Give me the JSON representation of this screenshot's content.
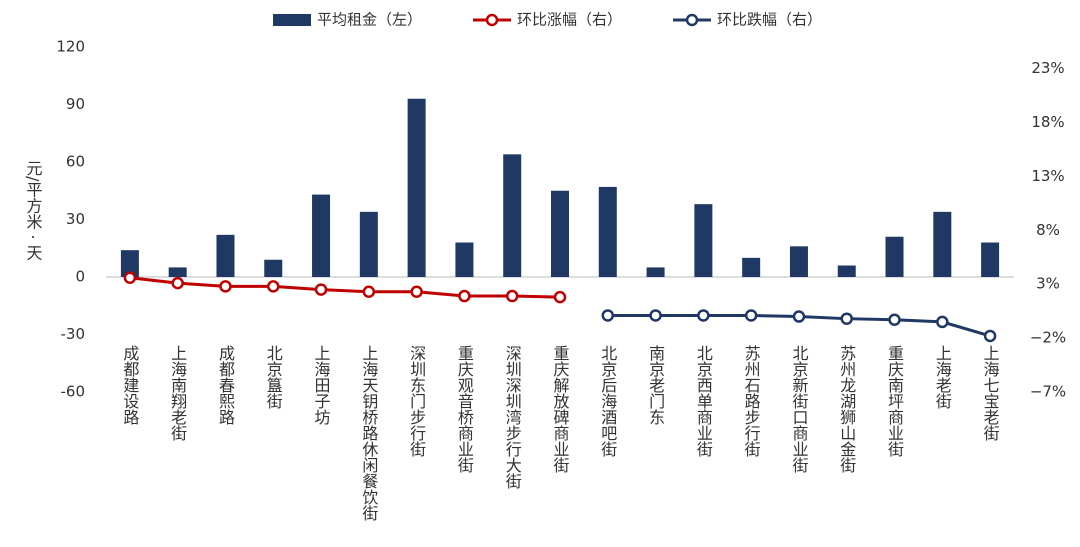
{
  "chart_data": {
    "type": "bar_line",
    "ylabel": "元/平方米 · 天",
    "categories": [
      "成都建设路",
      "上海南翔老街",
      "成都春熙路",
      "北京簋街",
      "上海田子坊",
      "上海天钥桥路休闲餐饮街",
      "深圳东门步行街",
      "重庆观音桥商业街",
      "深圳深圳湾步行大街",
      "重庆解放碑商业街",
      "北京后海酒吧街",
      "南京老门东",
      "北京西单商业街",
      "苏州石路步行街",
      "北京新街口商业街",
      "苏州龙湖狮山金街",
      "重庆南坪商业街",
      "上海老街",
      "上海七宝老街"
    ],
    "series": [
      {
        "name": "平均租金（左）",
        "color": "#1f3864",
        "kind": "bar",
        "values": [
          14,
          5,
          22,
          9,
          43,
          34,
          93,
          18,
          64,
          45,
          47,
          5,
          38,
          10,
          16,
          6,
          21,
          34,
          18
        ]
      },
      {
        "name": "环比涨幅（右）",
        "color": "#c00000",
        "kind": "line",
        "axis": "y2",
        "values": [
          3.6,
          3.1,
          2.8,
          2.8,
          2.5,
          2.3,
          2.3,
          1.9,
          1.9,
          1.8,
          null,
          null,
          null,
          null,
          null,
          null,
          null,
          null,
          null
        ]
      },
      {
        "name": "环比跌幅（右）",
        "color": "#1f3864",
        "kind": "line",
        "axis": "y2",
        "values": [
          null,
          null,
          null,
          null,
          null,
          null,
          null,
          null,
          null,
          null,
          0.1,
          0.1,
          0.1,
          0.1,
          0.0,
          -0.2,
          -0.3,
          -0.5,
          -1.8
        ]
      }
    ],
    "ylim": [
      -60,
      120
    ],
    "yticks": [
      -60,
      -30,
      0,
      30,
      60,
      90,
      120
    ],
    "y2lim": [
      -7,
      25
    ],
    "y2ticks": [
      {
        "value": -7,
        "label": "−7%"
      },
      {
        "value": -2,
        "label": "−2%"
      },
      {
        "value": 3,
        "label": "3%"
      },
      {
        "value": 8,
        "label": "8%"
      },
      {
        "value": 13,
        "label": "13%"
      },
      {
        "value": 18,
        "label": "18%"
      },
      {
        "value": 23,
        "label": "23%"
      }
    ]
  }
}
